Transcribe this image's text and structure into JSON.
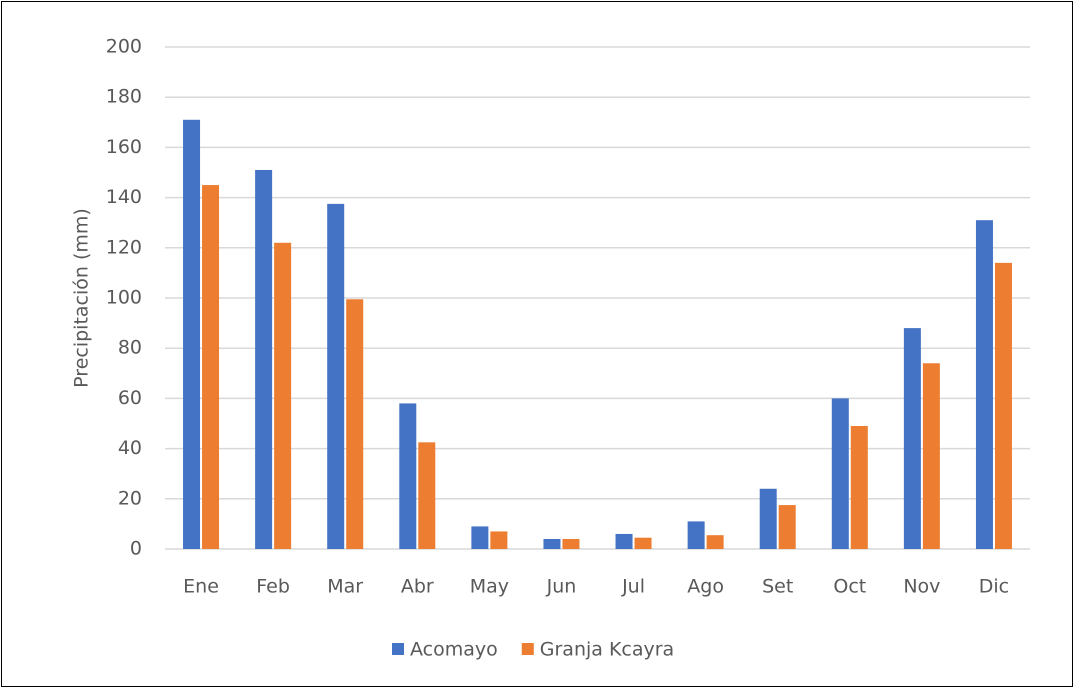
{
  "chart_data": {
    "type": "bar",
    "y_label": "Precipitación (mm)",
    "categories": [
      "Ene",
      "Feb",
      "Mar",
      "Abr",
      "May",
      "Jun",
      "Jul",
      "Ago",
      "Set",
      "Oct",
      "Nov",
      "Dic"
    ],
    "series": [
      {
        "name": "Acomayo",
        "color": "#4472c4",
        "values": [
          171,
          151,
          137.5,
          58,
          9,
          4,
          6,
          11,
          24,
          60,
          88,
          131
        ]
      },
      {
        "name": "Granja Kcayra",
        "color": "#ed7d31",
        "values": [
          145,
          122,
          99.5,
          42.5,
          7,
          4,
          4.5,
          5.5,
          17.5,
          49,
          74,
          114
        ]
      }
    ],
    "ylim": [
      0,
      200
    ],
    "yticks": [
      0,
      20,
      40,
      60,
      80,
      100,
      120,
      140,
      160,
      180,
      200
    ],
    "grid": true,
    "legend": "bottom"
  }
}
